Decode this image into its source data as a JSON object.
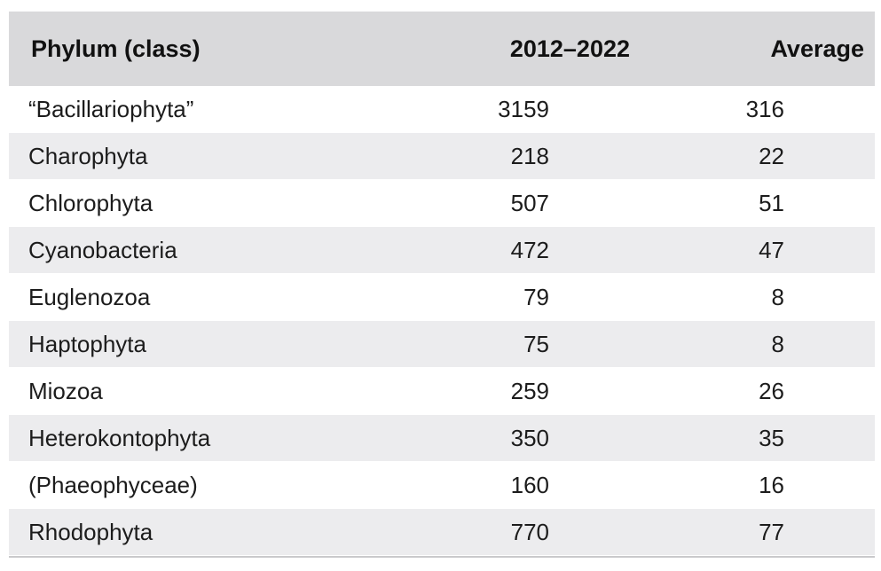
{
  "table": {
    "headers": {
      "name": "Phylum (class)",
      "period": "2012–2022",
      "average": "Average"
    },
    "rows": [
      {
        "name": "“Bacillariophyta”",
        "total": "3159",
        "average": "316"
      },
      {
        "name": "Charophyta",
        "total": "218",
        "average": "22"
      },
      {
        "name": "Chlorophyta",
        "total": "507",
        "average": "51"
      },
      {
        "name": "Cyanobacteria",
        "total": "472",
        "average": "47"
      },
      {
        "name": "Euglenozoa",
        "total": "79",
        "average": "8"
      },
      {
        "name": "Haptophyta",
        "total": "75",
        "average": "8"
      },
      {
        "name": "Miozoa",
        "total": "259",
        "average": "26"
      },
      {
        "name": "Heterokontophyta",
        "total": "350",
        "average": "35"
      },
      {
        "name": "(Phaeophyceae)",
        "total": "160",
        "average": "16"
      },
      {
        "name": "Rhodophyta",
        "total": "770",
        "average": "77"
      }
    ]
  }
}
